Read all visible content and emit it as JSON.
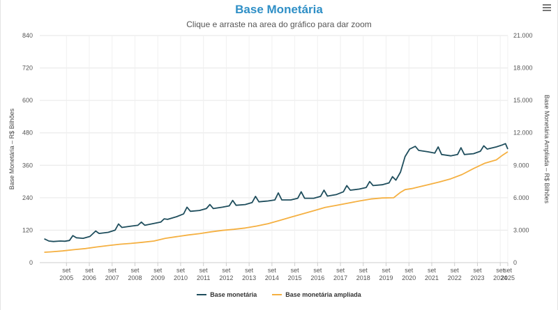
{
  "title": "Base Monetária",
  "subtitle": "Clique e arraste na area do gráfico para dar zoom",
  "icons": {
    "menu": "hamburger-menu-icon"
  },
  "colors": {
    "series_1": "#1e4d5c",
    "series_2": "#f5b041",
    "title": "#2f8fc6"
  },
  "legend": [
    {
      "label": "Base monetária"
    },
    {
      "label": "Base monetária ampliada"
    }
  ],
  "chart_data": {
    "type": "line",
    "xlabel": "",
    "ylabel": "Base Monetária – R$ Bilhões",
    "y2label": "Base Monetária Ampliada – R$ Bilhões",
    "xlim": [
      2004.5,
      2025.0
    ],
    "ylim": [
      0,
      840
    ],
    "y2lim": [
      0,
      21000
    ],
    "yticks": [
      "0",
      "120",
      "240",
      "360",
      "480",
      "600",
      "720",
      "840"
    ],
    "y2ticks": [
      "0",
      "3.000",
      "6.000",
      "9.000",
      "12.000",
      "15.000",
      "18.000",
      "21.000"
    ],
    "xticks": [
      {
        "x": 2005.67,
        "month": "set",
        "year": "2005"
      },
      {
        "x": 2006.67,
        "month": "set",
        "year": "2006"
      },
      {
        "x": 2007.67,
        "month": "set",
        "year": "2007"
      },
      {
        "x": 2008.67,
        "month": "set",
        "year": "2008"
      },
      {
        "x": 2009.67,
        "month": "set",
        "year": "2009"
      },
      {
        "x": 2010.67,
        "month": "set",
        "year": "2010"
      },
      {
        "x": 2011.67,
        "month": "set",
        "year": "2011"
      },
      {
        "x": 2012.67,
        "month": "set",
        "year": "2012"
      },
      {
        "x": 2013.67,
        "month": "set",
        "year": "2013"
      },
      {
        "x": 2014.67,
        "month": "set",
        "year": "2014"
      },
      {
        "x": 2015.67,
        "month": "set",
        "year": "2015"
      },
      {
        "x": 2016.67,
        "month": "set",
        "year": "2016"
      },
      {
        "x": 2017.67,
        "month": "set",
        "year": "2017"
      },
      {
        "x": 2018.67,
        "month": "set",
        "year": "2018"
      },
      {
        "x": 2019.67,
        "month": "set",
        "year": "2019"
      },
      {
        "x": 2020.67,
        "month": "set",
        "year": "2020"
      },
      {
        "x": 2021.67,
        "month": "set",
        "year": "2021"
      },
      {
        "x": 2022.67,
        "month": "set",
        "year": "2022"
      },
      {
        "x": 2023.67,
        "month": "set",
        "year": "2023"
      },
      {
        "x": 2024.67,
        "month": "set",
        "year": "2024"
      },
      {
        "x": 2025.0,
        "month": "set",
        "year": "2025"
      }
    ],
    "grid": true,
    "legend_position": "bottom-center",
    "series": [
      {
        "name": "Base monetária",
        "axis": "left",
        "points": [
          [
            2004.7,
            88
          ],
          [
            2004.9,
            80
          ],
          [
            2005.1,
            78
          ],
          [
            2005.4,
            80
          ],
          [
            2005.6,
            79
          ],
          [
            2005.8,
            82
          ],
          [
            2005.95,
            100
          ],
          [
            2006.1,
            92
          ],
          [
            2006.4,
            90
          ],
          [
            2006.7,
            97
          ],
          [
            2006.95,
            117
          ],
          [
            2007.1,
            108
          ],
          [
            2007.5,
            112
          ],
          [
            2007.8,
            120
          ],
          [
            2007.95,
            143
          ],
          [
            2008.1,
            130
          ],
          [
            2008.5,
            135
          ],
          [
            2008.8,
            138
          ],
          [
            2008.95,
            150
          ],
          [
            2009.1,
            138
          ],
          [
            2009.5,
            145
          ],
          [
            2009.8,
            150
          ],
          [
            2009.95,
            162
          ],
          [
            2010.1,
            160
          ],
          [
            2010.5,
            170
          ],
          [
            2010.8,
            180
          ],
          [
            2010.95,
            205
          ],
          [
            2011.1,
            190
          ],
          [
            2011.5,
            193
          ],
          [
            2011.8,
            200
          ],
          [
            2011.95,
            215
          ],
          [
            2012.1,
            200
          ],
          [
            2012.5,
            205
          ],
          [
            2012.8,
            210
          ],
          [
            2012.95,
            230
          ],
          [
            2013.1,
            212
          ],
          [
            2013.5,
            215
          ],
          [
            2013.8,
            222
          ],
          [
            2013.95,
            245
          ],
          [
            2014.1,
            225
          ],
          [
            2014.5,
            228
          ],
          [
            2014.8,
            232
          ],
          [
            2014.95,
            258
          ],
          [
            2015.1,
            232
          ],
          [
            2015.5,
            232
          ],
          [
            2015.8,
            238
          ],
          [
            2015.95,
            262
          ],
          [
            2016.1,
            238
          ],
          [
            2016.5,
            238
          ],
          [
            2016.8,
            245
          ],
          [
            2016.95,
            268
          ],
          [
            2017.1,
            246
          ],
          [
            2017.5,
            252
          ],
          [
            2017.8,
            262
          ],
          [
            2017.95,
            285
          ],
          [
            2018.1,
            268
          ],
          [
            2018.5,
            272
          ],
          [
            2018.8,
            278
          ],
          [
            2018.95,
            300
          ],
          [
            2019.1,
            285
          ],
          [
            2019.5,
            288
          ],
          [
            2019.8,
            295
          ],
          [
            2019.95,
            318
          ],
          [
            2020.1,
            305
          ],
          [
            2020.3,
            335
          ],
          [
            2020.5,
            392
          ],
          [
            2020.7,
            420
          ],
          [
            2020.95,
            430
          ],
          [
            2021.1,
            415
          ],
          [
            2021.5,
            410
          ],
          [
            2021.8,
            405
          ],
          [
            2021.95,
            428
          ],
          [
            2022.1,
            400
          ],
          [
            2022.5,
            395
          ],
          [
            2022.8,
            400
          ],
          [
            2022.95,
            425
          ],
          [
            2023.1,
            400
          ],
          [
            2023.5,
            403
          ],
          [
            2023.8,
            412
          ],
          [
            2023.95,
            432
          ],
          [
            2024.1,
            420
          ],
          [
            2024.5,
            428
          ],
          [
            2024.75,
            435
          ],
          [
            2024.9,
            440
          ],
          [
            2025.0,
            420
          ]
        ]
      },
      {
        "name": "Base monetária ampliada",
        "axis": "right",
        "points": [
          [
            2004.7,
            960
          ],
          [
            2005.0,
            1000
          ],
          [
            2005.5,
            1080
          ],
          [
            2006.0,
            1200
          ],
          [
            2006.5,
            1300
          ],
          [
            2007.0,
            1450
          ],
          [
            2007.5,
            1580
          ],
          [
            2008.0,
            1700
          ],
          [
            2008.5,
            1780
          ],
          [
            2009.0,
            1880
          ],
          [
            2009.5,
            2000
          ],
          [
            2010.0,
            2250
          ],
          [
            2010.5,
            2400
          ],
          [
            2011.0,
            2560
          ],
          [
            2011.5,
            2680
          ],
          [
            2012.0,
            2850
          ],
          [
            2012.5,
            2980
          ],
          [
            2013.0,
            3080
          ],
          [
            2013.5,
            3200
          ],
          [
            2014.0,
            3380
          ],
          [
            2014.5,
            3600
          ],
          [
            2015.0,
            3900
          ],
          [
            2015.5,
            4200
          ],
          [
            2016.0,
            4500
          ],
          [
            2016.5,
            4800
          ],
          [
            2017.0,
            5100
          ],
          [
            2017.5,
            5300
          ],
          [
            2018.0,
            5500
          ],
          [
            2018.5,
            5700
          ],
          [
            2019.0,
            5880
          ],
          [
            2019.5,
            5980
          ],
          [
            2020.0,
            6000
          ],
          [
            2020.3,
            6500
          ],
          [
            2020.5,
            6750
          ],
          [
            2020.8,
            6850
          ],
          [
            2021.0,
            6950
          ],
          [
            2021.5,
            7200
          ],
          [
            2022.0,
            7450
          ],
          [
            2022.5,
            7750
          ],
          [
            2023.0,
            8150
          ],
          [
            2023.5,
            8700
          ],
          [
            2024.0,
            9200
          ],
          [
            2024.5,
            9500
          ],
          [
            2024.75,
            9900
          ],
          [
            2025.0,
            10250
          ]
        ]
      }
    ]
  }
}
